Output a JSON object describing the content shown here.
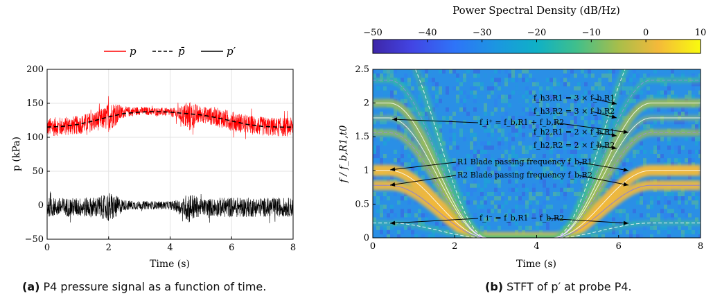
{
  "chart_data": [
    {
      "type": "line",
      "panel": "(a)",
      "caption_label": "(a)",
      "caption_text": "P4 pressure signal as a function of time.",
      "xlabel": "Time (s)",
      "ylabel": "p (kPa)",
      "xlim": [
        0,
        8
      ],
      "ylim": [
        -50,
        200
      ],
      "xticks": [
        0,
        2,
        4,
        6,
        8
      ],
      "yticks": [
        -50,
        0,
        50,
        100,
        150,
        200
      ],
      "grid": true,
      "legend_position": "top",
      "legend": [
        {
          "label": "p",
          "color": "#ff0000",
          "style": "solid"
        },
        {
          "label": "p̄",
          "color": "#000000",
          "style": "dashed"
        },
        {
          "label": "p′",
          "color": "#000000",
          "style": "solid"
        }
      ],
      "series": [
        {
          "name": "p",
          "color": "#ff0000",
          "x": [
            0,
            0.5,
            1.0,
            1.5,
            1.8,
            1.9,
            2.0,
            2.2,
            2.5,
            3.0,
            3.5,
            4.0,
            4.3,
            4.5,
            4.6,
            4.8,
            5.0,
            5.5,
            6.0,
            6.5,
            7.0,
            7.5,
            8.0
          ],
          "mean": [
            115,
            116,
            118,
            123,
            127,
            128,
            130,
            134,
            137,
            139,
            138,
            137,
            134,
            131,
            130,
            132,
            134,
            130,
            124,
            119,
            116,
            115,
            115
          ],
          "amp": [
            14,
            14,
            14,
            15,
            16,
            18,
            22,
            18,
            8,
            6,
            6,
            6,
            10,
            20,
            24,
            18,
            12,
            14,
            15,
            14,
            14,
            14,
            14
          ]
        },
        {
          "name": "p̄",
          "color": "#000000",
          "x": [
            0,
            0.5,
            1.0,
            1.5,
            2.0,
            2.5,
            3.0,
            3.5,
            4.0,
            4.5,
            5.0,
            5.5,
            6.0,
            6.5,
            7.0,
            7.5,
            8.0
          ],
          "y": [
            115,
            116,
            119,
            124,
            130,
            135,
            137,
            138,
            137,
            135,
            133,
            129,
            124,
            119,
            116,
            115,
            115
          ]
        },
        {
          "name": "p′",
          "color": "#000000",
          "x": [
            0,
            1.0,
            1.5,
            1.9,
            2.0,
            2.2,
            2.5,
            3.0,
            3.5,
            4.0,
            4.4,
            4.6,
            4.8,
            5.0,
            5.5,
            6.0,
            7.0,
            8.0
          ],
          "mean": [
            -3,
            -3,
            -3,
            -3,
            -3,
            -3,
            0,
            0,
            0,
            0,
            -3,
            -3,
            -3,
            -3,
            -3,
            -3,
            -3,
            -3
          ],
          "amp": [
            14,
            14,
            15,
            18,
            23,
            18,
            8,
            6,
            6,
            6,
            12,
            24,
            18,
            12,
            14,
            15,
            14,
            14
          ]
        }
      ]
    },
    {
      "type": "heatmap",
      "panel": "(b)",
      "caption_label": "(b)",
      "caption_text": "STFT of p′ at probe P4.",
      "xlabel": "Time (s)",
      "ylabel": "f / f_b,R1,t0",
      "colorbar_label": "Power Spectral Density (dB/Hz)",
      "colorbar_range": [
        -50,
        10
      ],
      "colorbar_ticks": [
        -50,
        -40,
        -30,
        -20,
        -10,
        0,
        10
      ],
      "xlim": [
        0,
        8
      ],
      "ylim": [
        0,
        2.5
      ],
      "xticks": [
        0,
        2,
        4,
        6,
        8
      ],
      "yticks": [
        0,
        0.5,
        1,
        1.5,
        2,
        2.5
      ],
      "blade_speed_profile": {
        "t": [
          0,
          0.4,
          2.8,
          4.4,
          6.8,
          8.0
        ],
        "speed": [
          1,
          1,
          0,
          0,
          1,
          1
        ]
      },
      "harmonics": [
        {
          "name": "f_b,R1",
          "ratio": 1.0
        },
        {
          "name": "f_b,R2",
          "ratio": 0.78
        },
        {
          "name": "2×f_b,R1",
          "ratio": 2.0
        },
        {
          "name": "2×f_b,R2",
          "ratio": 1.56
        },
        {
          "name": "3×f_b,R1",
          "ratio": 3.0
        },
        {
          "name": "3×f_b,R2",
          "ratio": 2.34
        },
        {
          "name": "f_b,R1+f_b,R2",
          "ratio": 1.78
        },
        {
          "name": "f_b,R1−f_b,R2",
          "ratio": 0.22
        }
      ],
      "annotations": [
        "f_h3,R1 = 3 × f_b,R1",
        "f_h3,R2 = 3 × f_b,R2",
        "f_i⁺ = f_b,R1 + f_b,R2",
        "f_h2,R1 = 2 × f_b,R1",
        "f_h2,R2 = 2 × f_b,R2",
        "R1 Blade passing frequency f_b,R1",
        "R2 Blade passing frequency f_b,R2",
        "f_i⁻ = f_b,R1 − f_b,R2"
      ]
    }
  ]
}
